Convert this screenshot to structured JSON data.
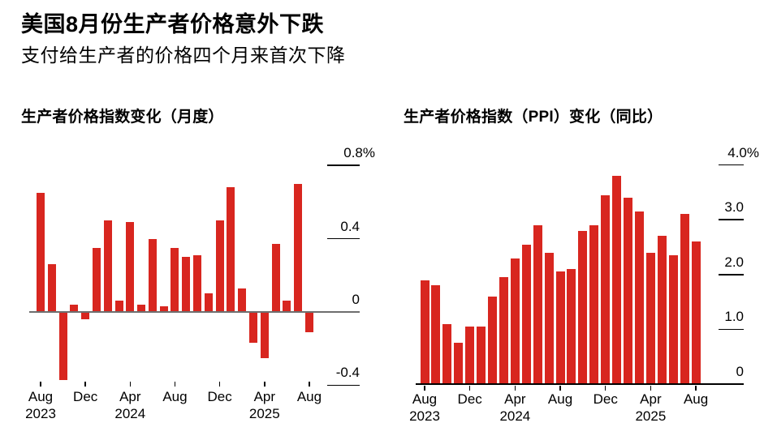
{
  "header": {
    "title": "美国8月份生产者价格意外下跌",
    "subtitle": "支付给生产者的价格四个月来首次下降"
  },
  "colors": {
    "bar_red": "#d8261f",
    "zero_line_gray": "#6e6e6e",
    "axis_black": "#000000",
    "text_black": "#000000",
    "background": "#ffffff"
  },
  "chart_data": [
    {
      "type": "bar",
      "title": "生产者价格指数变化（月度）",
      "unit": "%",
      "legend": "none",
      "grid": "off",
      "axis_side": "right",
      "categories": [
        "Aug 2023",
        "Sep 2023",
        "Oct 2023",
        "Nov 2023",
        "Dec 2023",
        "Jan 2024",
        "Feb 2024",
        "Mar 2024",
        "Apr 2024",
        "May 2024",
        "Jun 2024",
        "Jul 2024",
        "Aug 2024",
        "Sep 2024",
        "Oct 2024",
        "Nov 2024",
        "Dec 2024",
        "Jan 2025",
        "Feb 2025",
        "Mar 2025",
        "Apr 2025",
        "May 2025",
        "Jun 2025",
        "Jul 2025",
        "Aug 2025"
      ],
      "values": [
        0.65,
        0.26,
        -0.37,
        0.04,
        -0.04,
        0.35,
        0.5,
        0.06,
        0.49,
        0.04,
        0.4,
        0.03,
        0.35,
        0.3,
        0.31,
        0.1,
        0.5,
        0.68,
        0.13,
        -0.17,
        -0.25,
        0.37,
        0.06,
        0.7,
        -0.11
      ],
      "ylim": [
        -0.5,
        0.85
      ],
      "yticks": [
        {
          "value": 0.8,
          "label": "0.8%"
        },
        {
          "value": 0.4,
          "label": "0.4"
        },
        {
          "value": 0,
          "label": "0"
        },
        {
          "value": -0.4,
          "label": "-0.4"
        }
      ],
      "xticks": [
        {
          "index": 0,
          "label": "Aug",
          "year": "2023"
        },
        {
          "index": 4,
          "label": "Dec",
          "year": ""
        },
        {
          "index": 8,
          "label": "Apr",
          "year": "2024"
        },
        {
          "index": 12,
          "label": "Aug",
          "year": ""
        },
        {
          "index": 16,
          "label": "Dec",
          "year": ""
        },
        {
          "index": 20,
          "label": "Apr",
          "year": "2025"
        },
        {
          "index": 24,
          "label": "Aug",
          "year": ""
        }
      ]
    },
    {
      "type": "bar",
      "title": "生产者价格指数（PPI）变化（同比）",
      "unit": "%",
      "legend": "none",
      "grid": "off",
      "axis_side": "right",
      "categories": [
        "Aug 2023",
        "Sep 2023",
        "Oct 2023",
        "Nov 2023",
        "Dec 2023",
        "Jan 2024",
        "Feb 2024",
        "Mar 2024",
        "Apr 2024",
        "May 2024",
        "Jun 2024",
        "Jul 2024",
        "Aug 2024",
        "Sep 2024",
        "Oct 2024",
        "Nov 2024",
        "Dec 2024",
        "Jan 2025",
        "Feb 2025",
        "Mar 2025",
        "Apr 2025",
        "May 2025",
        "Jun 2025",
        "Jul 2025",
        "Aug 2025"
      ],
      "values": [
        1.9,
        1.8,
        1.1,
        0.75,
        1.05,
        1.05,
        1.6,
        1.95,
        2.3,
        2.55,
        2.9,
        2.4,
        2.05,
        2.1,
        2.8,
        2.9,
        3.45,
        3.8,
        3.4,
        3.15,
        2.4,
        2.7,
        2.35,
        3.1,
        2.6
      ],
      "ylim": [
        0,
        4.0
      ],
      "yticks": [
        {
          "value": 4.0,
          "label": "4.0%"
        },
        {
          "value": 3.0,
          "label": "3.0"
        },
        {
          "value": 2.0,
          "label": "2.0"
        },
        {
          "value": 1.0,
          "label": "1.0"
        },
        {
          "value": 0,
          "label": "0"
        }
      ],
      "xticks": [
        {
          "index": 0,
          "label": "Aug",
          "year": "2023"
        },
        {
          "index": 4,
          "label": "Dec",
          "year": ""
        },
        {
          "index": 8,
          "label": "Apr",
          "year": "2024"
        },
        {
          "index": 12,
          "label": "Aug",
          "year": ""
        },
        {
          "index": 16,
          "label": "Dec",
          "year": ""
        },
        {
          "index": 20,
          "label": "Apr",
          "year": "2025"
        },
        {
          "index": 24,
          "label": "Aug",
          "year": ""
        }
      ]
    }
  ]
}
